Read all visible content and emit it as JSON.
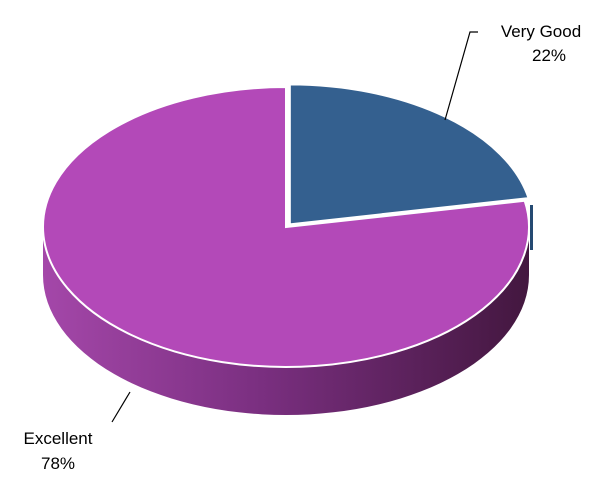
{
  "chart_data": {
    "type": "pie",
    "style": "3d",
    "slices": [
      {
        "label": "Very Good",
        "value": 22,
        "value_label": "22%",
        "color": "#34608f",
        "exploded": true
      },
      {
        "label": "Excellent",
        "value": 78,
        "value_label": "78%",
        "color": "#b349b8",
        "exploded": false
      }
    ],
    "legend": "none"
  }
}
